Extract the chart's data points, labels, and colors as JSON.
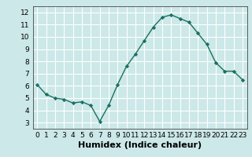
{
  "x": [
    0,
    1,
    2,
    3,
    4,
    5,
    6,
    7,
    8,
    9,
    10,
    11,
    12,
    13,
    14,
    15,
    16,
    17,
    18,
    19,
    20,
    21,
    22,
    23
  ],
  "y": [
    6.1,
    5.3,
    5.0,
    4.9,
    4.6,
    4.7,
    4.4,
    3.1,
    4.4,
    6.1,
    7.6,
    8.6,
    9.7,
    10.8,
    11.6,
    11.8,
    11.5,
    11.2,
    10.3,
    9.4,
    7.9,
    7.2,
    7.2,
    6.5
  ],
  "line_color": "#1a7060",
  "marker": "D",
  "marker_size": 2.2,
  "bg_color": "#cce8e8",
  "grid_color": "#ffffff",
  "xlabel": "Humidex (Indice chaleur)",
  "xlim": [
    -0.5,
    23.5
  ],
  "ylim": [
    2.5,
    12.5
  ],
  "yticks": [
    3,
    4,
    5,
    6,
    7,
    8,
    9,
    10,
    11,
    12
  ],
  "xticks": [
    0,
    1,
    2,
    3,
    4,
    5,
    6,
    7,
    8,
    9,
    10,
    11,
    12,
    13,
    14,
    15,
    16,
    17,
    18,
    19,
    20,
    21,
    22,
    23
  ],
  "tick_fontsize": 6.5,
  "xlabel_fontsize": 8,
  "xlabel_fontweight": "bold"
}
